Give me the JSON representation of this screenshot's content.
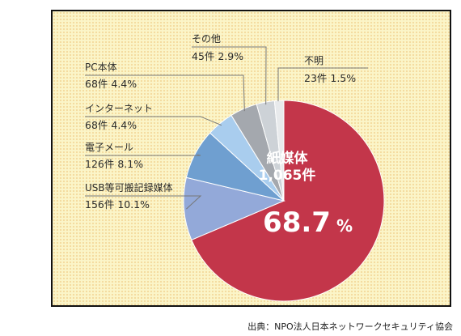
{
  "chart_data": {
    "type": "pie",
    "slices": [
      {
        "name": "紙媒体",
        "count": "1,065件",
        "percent": 68.7,
        "percent_label": "68.7",
        "percent_sign": "%",
        "color": "#c3364a"
      },
      {
        "name": "USB等可搬記録媒体",
        "count": "156件",
        "percent": 10.1,
        "percent_label": "10.1%",
        "color": "#93a9d9"
      },
      {
        "name": "電子メール",
        "count": "126件",
        "percent": 8.1,
        "percent_label": "8.1%",
        "color": "#6f9fd0"
      },
      {
        "name": "インターネット",
        "count": "68件",
        "percent": 4.4,
        "percent_label": "4.4%",
        "color": "#a9cdee"
      },
      {
        "name": "PC本体",
        "count": "68件",
        "percent": 4.4,
        "percent_label": "4.4%",
        "color": "#a4a8ae"
      },
      {
        "name": "その他",
        "count": "45件",
        "percent": 2.9,
        "percent_label": "2.9%",
        "color": "#cdd2d7"
      },
      {
        "name": "不明",
        "count": "23件",
        "percent": 1.5,
        "percent_label": "1.5%",
        "color": "#e8eaec"
      }
    ]
  },
  "source": "出典：NPO法人日本ネットワークセキュリティ協会"
}
